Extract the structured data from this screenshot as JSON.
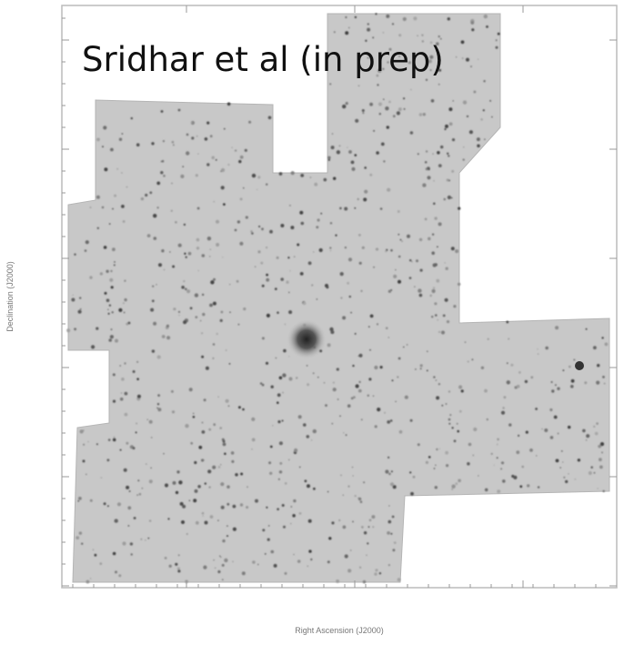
{
  "annotation": "Sridhar et al (in prep)",
  "x_axis_label": "Right Ascension (J2000)",
  "y_axis_label": "Declination (J2000)"
}
